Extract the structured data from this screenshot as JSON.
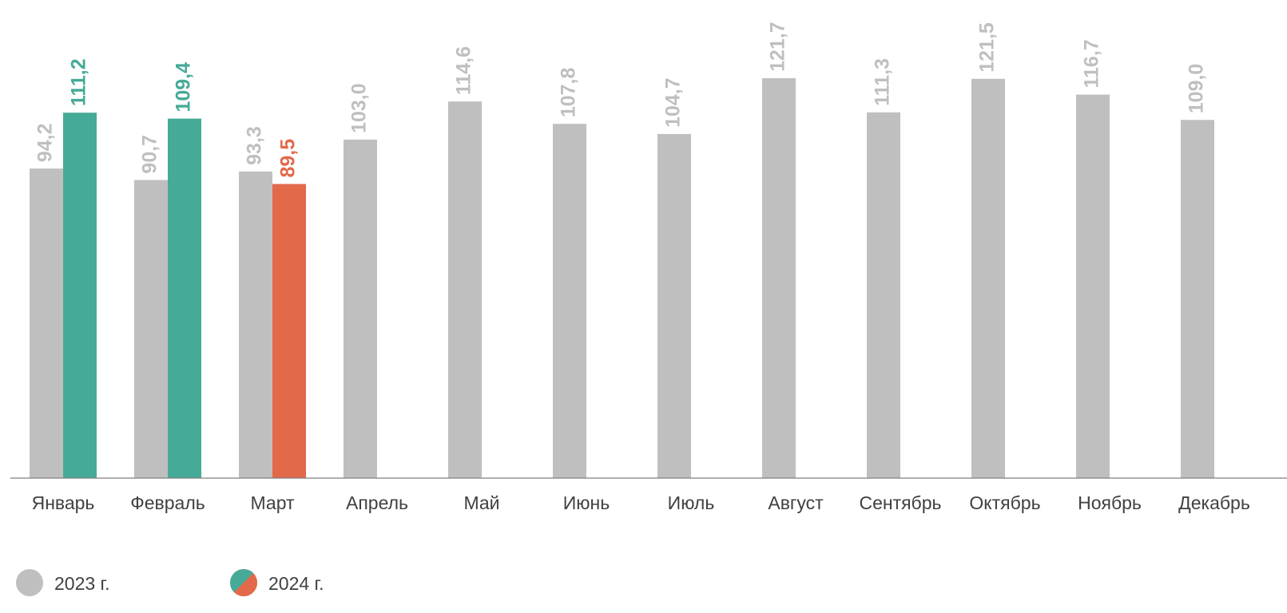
{
  "chart_data": {
    "type": "bar",
    "categories": [
      "Январь",
      "Февраль",
      "Март",
      "Апрель",
      "Май",
      "Июнь",
      "Июль",
      "Август",
      "Сентябрь",
      "Октябрь",
      "Ноябрь",
      "Декабрь"
    ],
    "series": [
      {
        "name": "2023 г.",
        "color": "#bfbfbf",
        "values": [
          94.2,
          90.7,
          93.3,
          103.0,
          114.6,
          107.8,
          104.7,
          121.7,
          111.3,
          121.5,
          116.7,
          109.0
        ],
        "value_labels": [
          "94,2",
          "90,7",
          "93,3",
          "103,0",
          "114,6",
          "107,8",
          "104,7",
          "121,7",
          "111,3",
          "121,5",
          "116,7",
          "109,0"
        ]
      },
      {
        "name": "2024 г.",
        "colors": [
          "#46aa98",
          "#46aa98",
          "#e2694a",
          null,
          null,
          null,
          null,
          null,
          null,
          null,
          null,
          null
        ],
        "values": [
          111.2,
          109.4,
          89.5,
          null,
          null,
          null,
          null,
          null,
          null,
          null,
          null,
          null
        ],
        "value_labels": [
          "111,2",
          "109,4",
          "89,5",
          null,
          null,
          null,
          null,
          null,
          null,
          null,
          null,
          null
        ]
      }
    ],
    "ylim": [
      0,
      145
    ],
    "legend": "bottom-left"
  }
}
